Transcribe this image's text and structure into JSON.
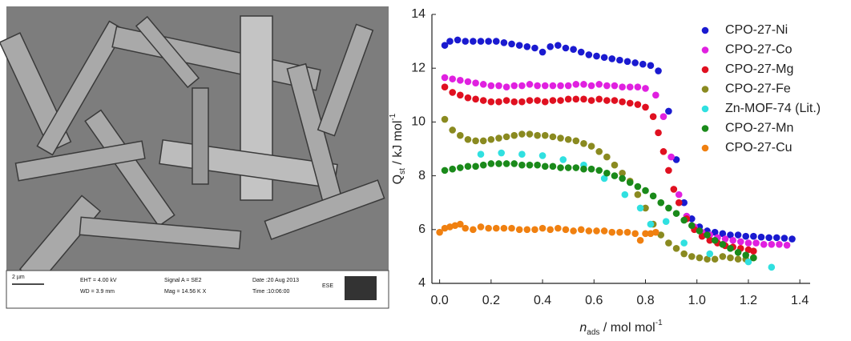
{
  "image_panel": {
    "scale_bar": "2 µm",
    "eht": "EHT = 4.00 kV",
    "wd": "WD = 3.9 mm",
    "signal": "Signal A = SE2",
    "mag": "Mag = 14.56 K X",
    "date": "Date :20 Aug 2013",
    "time": "Time :10:06:00",
    "detector": "ESE"
  },
  "chart_data": {
    "type": "scatter",
    "x_label": {
      "main": "n",
      "sub": "ads",
      "unit": " / mol mol",
      "sup": "-1"
    },
    "y_label": {
      "main": "Q",
      "sub": "st",
      "unit": " / kJ mol",
      "sup": "-1"
    },
    "xlim": [
      -0.03,
      1.44
    ],
    "ylim": [
      4,
      14
    ],
    "xticks": [
      {
        "value": 0,
        "label": "0.0"
      },
      0.2,
      0.4,
      0.6,
      0.8,
      {
        "value": 1,
        "label": "1.0"
      },
      1.2,
      1.4
    ],
    "yticks": [
      4,
      6,
      8,
      10,
      12,
      14
    ],
    "legend": "top-right",
    "series": [
      {
        "name": "CPO-27-Ni",
        "color": "#1a1ad0",
        "x": [
          0.02,
          0.04,
          0.07,
          0.1,
          0.13,
          0.16,
          0.19,
          0.22,
          0.25,
          0.28,
          0.31,
          0.34,
          0.37,
          0.4,
          0.43,
          0.46,
          0.49,
          0.52,
          0.55,
          0.58,
          0.61,
          0.64,
          0.67,
          0.7,
          0.73,
          0.76,
          0.79,
          0.82,
          0.85,
          0.89,
          0.92,
          0.95,
          0.98,
          1.01,
          1.04,
          1.07,
          1.1,
          1.13,
          1.16,
          1.19,
          1.22,
          1.25,
          1.28,
          1.31,
          1.34,
          1.37
        ],
        "values": [
          12.85,
          13.0,
          13.05,
          13.0,
          13.0,
          13.0,
          13.0,
          13.0,
          12.95,
          12.9,
          12.85,
          12.8,
          12.75,
          12.6,
          12.8,
          12.85,
          12.75,
          12.7,
          12.6,
          12.5,
          12.45,
          12.4,
          12.35,
          12.3,
          12.25,
          12.2,
          12.15,
          12.1,
          11.9,
          10.4,
          8.6,
          7.0,
          6.4,
          6.1,
          5.95,
          5.9,
          5.85,
          5.8,
          5.8,
          5.75,
          5.75,
          5.72,
          5.7,
          5.7,
          5.68,
          5.65
        ]
      },
      {
        "name": "CPO-27-Co",
        "color": "#e020e0",
        "x": [
          0.02,
          0.05,
          0.08,
          0.11,
          0.14,
          0.17,
          0.2,
          0.23,
          0.26,
          0.29,
          0.32,
          0.35,
          0.38,
          0.41,
          0.44,
          0.47,
          0.5,
          0.53,
          0.56,
          0.59,
          0.62,
          0.65,
          0.68,
          0.71,
          0.74,
          0.77,
          0.8,
          0.84,
          0.87,
          0.9,
          0.93,
          0.96,
          0.99,
          1.02,
          1.05,
          1.08,
          1.11,
          1.14,
          1.17,
          1.2,
          1.23,
          1.26,
          1.29,
          1.32,
          1.35
        ],
        "values": [
          11.65,
          11.6,
          11.55,
          11.5,
          11.45,
          11.4,
          11.35,
          11.35,
          11.3,
          11.35,
          11.35,
          11.4,
          11.35,
          11.35,
          11.35,
          11.35,
          11.35,
          11.4,
          11.4,
          11.35,
          11.4,
          11.35,
          11.35,
          11.3,
          11.3,
          11.3,
          11.25,
          11.0,
          10.2,
          8.7,
          7.3,
          6.5,
          6.1,
          5.9,
          5.8,
          5.7,
          5.65,
          5.6,
          5.55,
          5.5,
          5.5,
          5.45,
          5.45,
          5.45,
          5.42
        ]
      },
      {
        "name": "CPO-27-Mg",
        "color": "#e01020",
        "x": [
          0.02,
          0.05,
          0.08,
          0.11,
          0.14,
          0.17,
          0.2,
          0.23,
          0.26,
          0.29,
          0.32,
          0.35,
          0.38,
          0.41,
          0.44,
          0.47,
          0.5,
          0.53,
          0.56,
          0.59,
          0.62,
          0.65,
          0.68,
          0.71,
          0.74,
          0.77,
          0.8,
          0.83,
          0.85,
          0.87,
          0.89,
          0.91,
          0.93,
          0.96,
          0.99,
          1.02,
          1.05,
          1.08,
          1.11,
          1.14,
          1.17,
          1.2,
          1.22
        ],
        "values": [
          11.3,
          11.1,
          11.0,
          10.9,
          10.85,
          10.8,
          10.75,
          10.75,
          10.8,
          10.75,
          10.75,
          10.8,
          10.8,
          10.75,
          10.8,
          10.8,
          10.85,
          10.85,
          10.85,
          10.8,
          10.85,
          10.8,
          10.8,
          10.75,
          10.7,
          10.65,
          10.55,
          10.2,
          9.6,
          8.9,
          8.2,
          7.5,
          7.0,
          6.4,
          6.0,
          5.75,
          5.6,
          5.5,
          5.4,
          5.35,
          5.3,
          5.25,
          5.2
        ]
      },
      {
        "name": "CPO-27-Fe",
        "color": "#8a8a20",
        "x": [
          0.02,
          0.05,
          0.08,
          0.11,
          0.14,
          0.17,
          0.2,
          0.23,
          0.26,
          0.29,
          0.32,
          0.35,
          0.38,
          0.41,
          0.44,
          0.47,
          0.5,
          0.53,
          0.56,
          0.59,
          0.62,
          0.65,
          0.68,
          0.71,
          0.74,
          0.77,
          0.8,
          0.83,
          0.86,
          0.89,
          0.92,
          0.95,
          0.98,
          1.01,
          1.04,
          1.07,
          1.1,
          1.13,
          1.16,
          1.19,
          1.22
        ],
        "values": [
          10.1,
          9.7,
          9.5,
          9.35,
          9.3,
          9.3,
          9.35,
          9.4,
          9.45,
          9.5,
          9.55,
          9.55,
          9.5,
          9.5,
          9.45,
          9.4,
          9.35,
          9.3,
          9.2,
          9.1,
          8.9,
          8.7,
          8.4,
          8.1,
          7.8,
          7.3,
          6.8,
          6.2,
          5.8,
          5.5,
          5.3,
          5.1,
          5.0,
          4.95,
          4.9,
          4.9,
          5.0,
          4.95,
          4.9,
          4.9,
          4.95
        ]
      },
      {
        "name": "Zn-MOF-74 (Lit.)",
        "color": "#30e0e0",
        "x": [
          0.16,
          0.24,
          0.32,
          0.4,
          0.48,
          0.56,
          0.64,
          0.72,
          0.78,
          0.82,
          0.88,
          0.95,
          1.05,
          1.2,
          1.29
        ],
        "values": [
          8.8,
          8.85,
          8.8,
          8.75,
          8.6,
          8.4,
          7.9,
          7.3,
          6.8,
          6.2,
          6.3,
          5.5,
          5.1,
          4.8,
          4.6
        ]
      },
      {
        "name": "CPO-27-Mn",
        "color": "#1a8a1a",
        "x": [
          0.02,
          0.05,
          0.08,
          0.11,
          0.14,
          0.17,
          0.2,
          0.23,
          0.26,
          0.29,
          0.32,
          0.35,
          0.38,
          0.41,
          0.44,
          0.47,
          0.5,
          0.53,
          0.56,
          0.59,
          0.62,
          0.65,
          0.68,
          0.71,
          0.74,
          0.77,
          0.8,
          0.83,
          0.86,
          0.89,
          0.92,
          0.95,
          0.98,
          1.01,
          1.04,
          1.07,
          1.1,
          1.13,
          1.16,
          1.19,
          1.22
        ],
        "values": [
          8.2,
          8.25,
          8.3,
          8.35,
          8.35,
          8.4,
          8.45,
          8.45,
          8.45,
          8.45,
          8.4,
          8.4,
          8.4,
          8.35,
          8.35,
          8.3,
          8.3,
          8.3,
          8.25,
          8.25,
          8.2,
          8.1,
          8.0,
          7.9,
          7.75,
          7.6,
          7.45,
          7.25,
          7.0,
          6.8,
          6.6,
          6.35,
          6.15,
          5.95,
          5.8,
          5.6,
          5.45,
          5.3,
          5.15,
          5.05,
          4.95
        ]
      },
      {
        "name": "CPO-27-Cu",
        "color": "#f08010",
        "x": [
          0.0,
          0.02,
          0.04,
          0.06,
          0.08,
          0.1,
          0.13,
          0.16,
          0.19,
          0.22,
          0.25,
          0.28,
          0.31,
          0.34,
          0.37,
          0.4,
          0.43,
          0.46,
          0.49,
          0.52,
          0.55,
          0.58,
          0.61,
          0.64,
          0.67,
          0.7,
          0.73,
          0.76,
          0.78,
          0.8,
          0.82,
          0.84
        ],
        "values": [
          5.9,
          6.05,
          6.1,
          6.15,
          6.2,
          6.05,
          6.0,
          6.1,
          6.05,
          6.05,
          6.05,
          6.05,
          6.0,
          6.0,
          6.0,
          6.05,
          6.0,
          6.05,
          6.0,
          5.95,
          6.0,
          5.95,
          5.95,
          5.95,
          5.9,
          5.9,
          5.9,
          5.85,
          5.6,
          5.85,
          5.85,
          5.9
        ]
      }
    ]
  }
}
